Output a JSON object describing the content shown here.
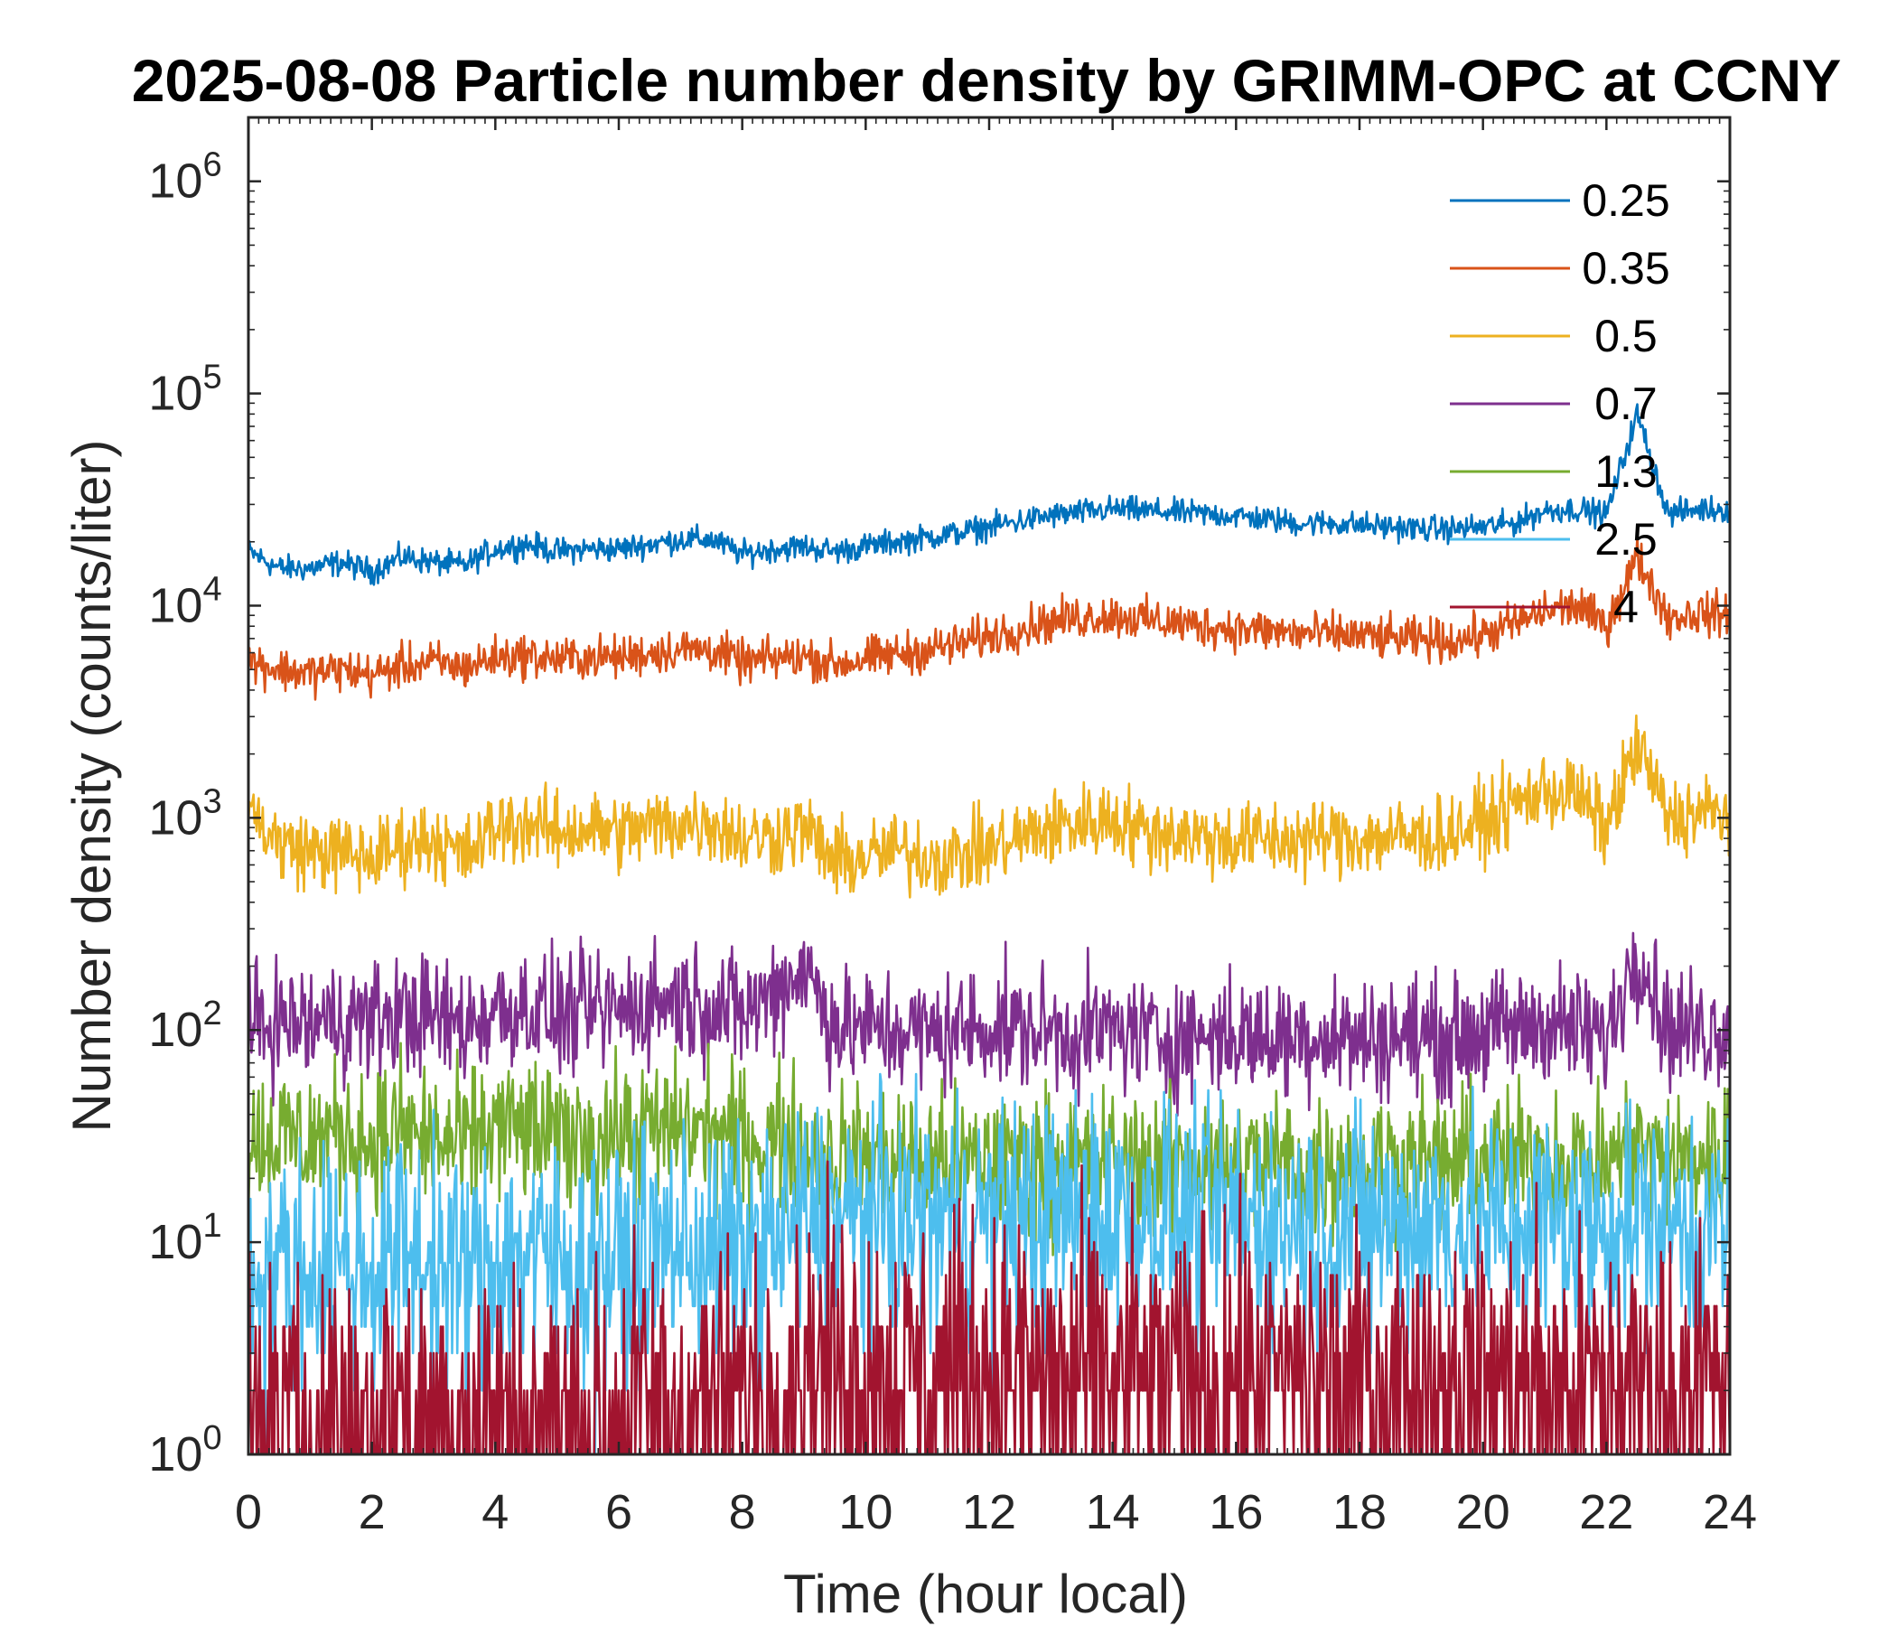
{
  "chart_data": {
    "type": "line",
    "title": "2025-08-08 Particle number density by GRIMM-OPC at CCNY",
    "xlabel": "Time (hour local)",
    "ylabel": "Number density (counts/liter)",
    "xlim": [
      0,
      24
    ],
    "ylim": [
      1,
      2000000
    ],
    "yscale": "log",
    "x_ticks": [
      0,
      2,
      4,
      6,
      8,
      10,
      12,
      14,
      16,
      18,
      20,
      22,
      24
    ],
    "x_tick_labels": [
      "0",
      "2",
      "4",
      "6",
      "8",
      "10",
      "12",
      "14",
      "16",
      "18",
      "20",
      "22",
      "24"
    ],
    "y_ticks": [
      1,
      10,
      100,
      1000,
      10000,
      100000,
      1000000
    ],
    "y_tick_base": "10",
    "y_tick_exponents": [
      "0",
      "1",
      "2",
      "3",
      "4",
      "5",
      "6"
    ],
    "legend_position": "top-right",
    "x": [
      0,
      0.5,
      1,
      1.5,
      2,
      2.5,
      3,
      3.5,
      4,
      4.5,
      5,
      5.5,
      6,
      6.5,
      7,
      7.5,
      8,
      8.5,
      9,
      9.5,
      10,
      10.5,
      11,
      11.5,
      12,
      12.5,
      13,
      13.5,
      14,
      14.5,
      15,
      15.5,
      16,
      16.5,
      17,
      17.5,
      18,
      18.5,
      19,
      19.5,
      20,
      20.5,
      21,
      21.5,
      22,
      22.5,
      23,
      23.5,
      24
    ],
    "series": [
      {
        "name": "0.25",
        "color": "#0072BD",
        "values": [
          18000,
          15000,
          15000,
          16000,
          14500,
          17000,
          16000,
          15500,
          18500,
          19500,
          18000,
          18500,
          18500,
          19500,
          20500,
          20500,
          17500,
          18500,
          19000,
          18000,
          19000,
          20000,
          21000,
          22000,
          23500,
          25000,
          26500,
          27500,
          28500,
          28000,
          27500,
          27000,
          26500,
          25500,
          24500,
          24500,
          24000,
          23500,
          23000,
          23000,
          23500,
          24500,
          28000,
          28500,
          27000,
          80000,
          27000,
          28500,
          28500
        ]
      },
      {
        "name": "0.35",
        "color": "#D95319",
        "values": [
          5500,
          5000,
          4800,
          5000,
          4700,
          5200,
          5400,
          5100,
          5700,
          5800,
          5600,
          5700,
          5700,
          6000,
          6200,
          6200,
          5400,
          5600,
          5800,
          5300,
          5600,
          5900,
          6200,
          6600,
          7200,
          7800,
          8400,
          8800,
          9000,
          8600,
          8300,
          8000,
          7800,
          7600,
          7400,
          7300,
          7200,
          7000,
          6900,
          6800,
          7300,
          8200,
          9400,
          10000,
          8000,
          17000,
          8800,
          9200,
          9000
        ]
      },
      {
        "name": "0.5",
        "color": "#EDB120",
        "values": [
          1100,
          750,
          700,
          680,
          640,
          750,
          800,
          650,
          900,
          950,
          850,
          900,
          850,
          900,
          950,
          960,
          800,
          820,
          900,
          620,
          650,
          700,
          650,
          660,
          720,
          800,
          900,
          950,
          1000,
          860,
          850,
          800,
          780,
          800,
          780,
          820,
          800,
          820,
          800,
          850,
          950,
          1150,
          1350,
          1300,
          900,
          2200,
          1000,
          1050,
          1050
        ]
      },
      {
        "name": "0.7",
        "color": "#7E2F8E",
        "values": [
          100,
          110,
          105,
          115,
          110,
          120,
          115,
          105,
          125,
          130,
          115,
          120,
          125,
          135,
          140,
          130,
          120,
          150,
          200,
          105,
          100,
          100,
          95,
          100,
          105,
          100,
          100,
          95,
          100,
          95,
          90,
          95,
          95,
          90,
          95,
          95,
          90,
          95,
          95,
          90,
          100,
          100,
          110,
          100,
          90,
          250,
          100,
          100,
          105
        ]
      },
      {
        "name": "1.3",
        "color": "#77AC30",
        "values": [
          30,
          32,
          30,
          33,
          30,
          34,
          30,
          28,
          35,
          34,
          30,
          32,
          32,
          33,
          34,
          33,
          30,
          30,
          29,
          25,
          25,
          24,
          24,
          23,
          24,
          24,
          24,
          23,
          24,
          24,
          23,
          24,
          23,
          24,
          23,
          23,
          23,
          24,
          24,
          23,
          24,
          24,
          25,
          24,
          24,
          28,
          24,
          25,
          25
        ]
      },
      {
        "name": "2.5",
        "color": "#4DBEEE",
        "values": [
          7,
          8,
          7,
          8,
          7,
          9,
          8,
          7,
          8,
          9,
          8,
          8,
          8,
          9,
          10,
          9,
          9,
          10,
          13,
          12,
          13,
          12,
          13,
          12,
          13,
          12,
          14,
          13,
          14,
          13,
          13,
          12,
          13,
          12,
          12,
          12,
          12,
          12,
          12,
          12,
          12,
          12,
          13,
          12,
          12,
          13,
          12,
          12,
          12
        ]
      },
      {
        "name": "4",
        "color": "#A2142F",
        "values": [
          1.5,
          1.4,
          1.5,
          1.4,
          1.5,
          1.6,
          1.5,
          1.5,
          1.6,
          1.5,
          1.4,
          1.5,
          1.6,
          1.8,
          1.8,
          1.7,
          1.8,
          2.0,
          3.0,
          2.6,
          2.7,
          2.5,
          2.6,
          2.5,
          2.4,
          2.4,
          2.4,
          2.3,
          2.4,
          2.3,
          2.3,
          2.4,
          2.3,
          2.2,
          2.3,
          2.2,
          2.2,
          2.1,
          2.2,
          2.1,
          2.2,
          2.2,
          2.2,
          2.1,
          2.1,
          2.2,
          2.1,
          2.1,
          2.1
        ]
      }
    ]
  }
}
